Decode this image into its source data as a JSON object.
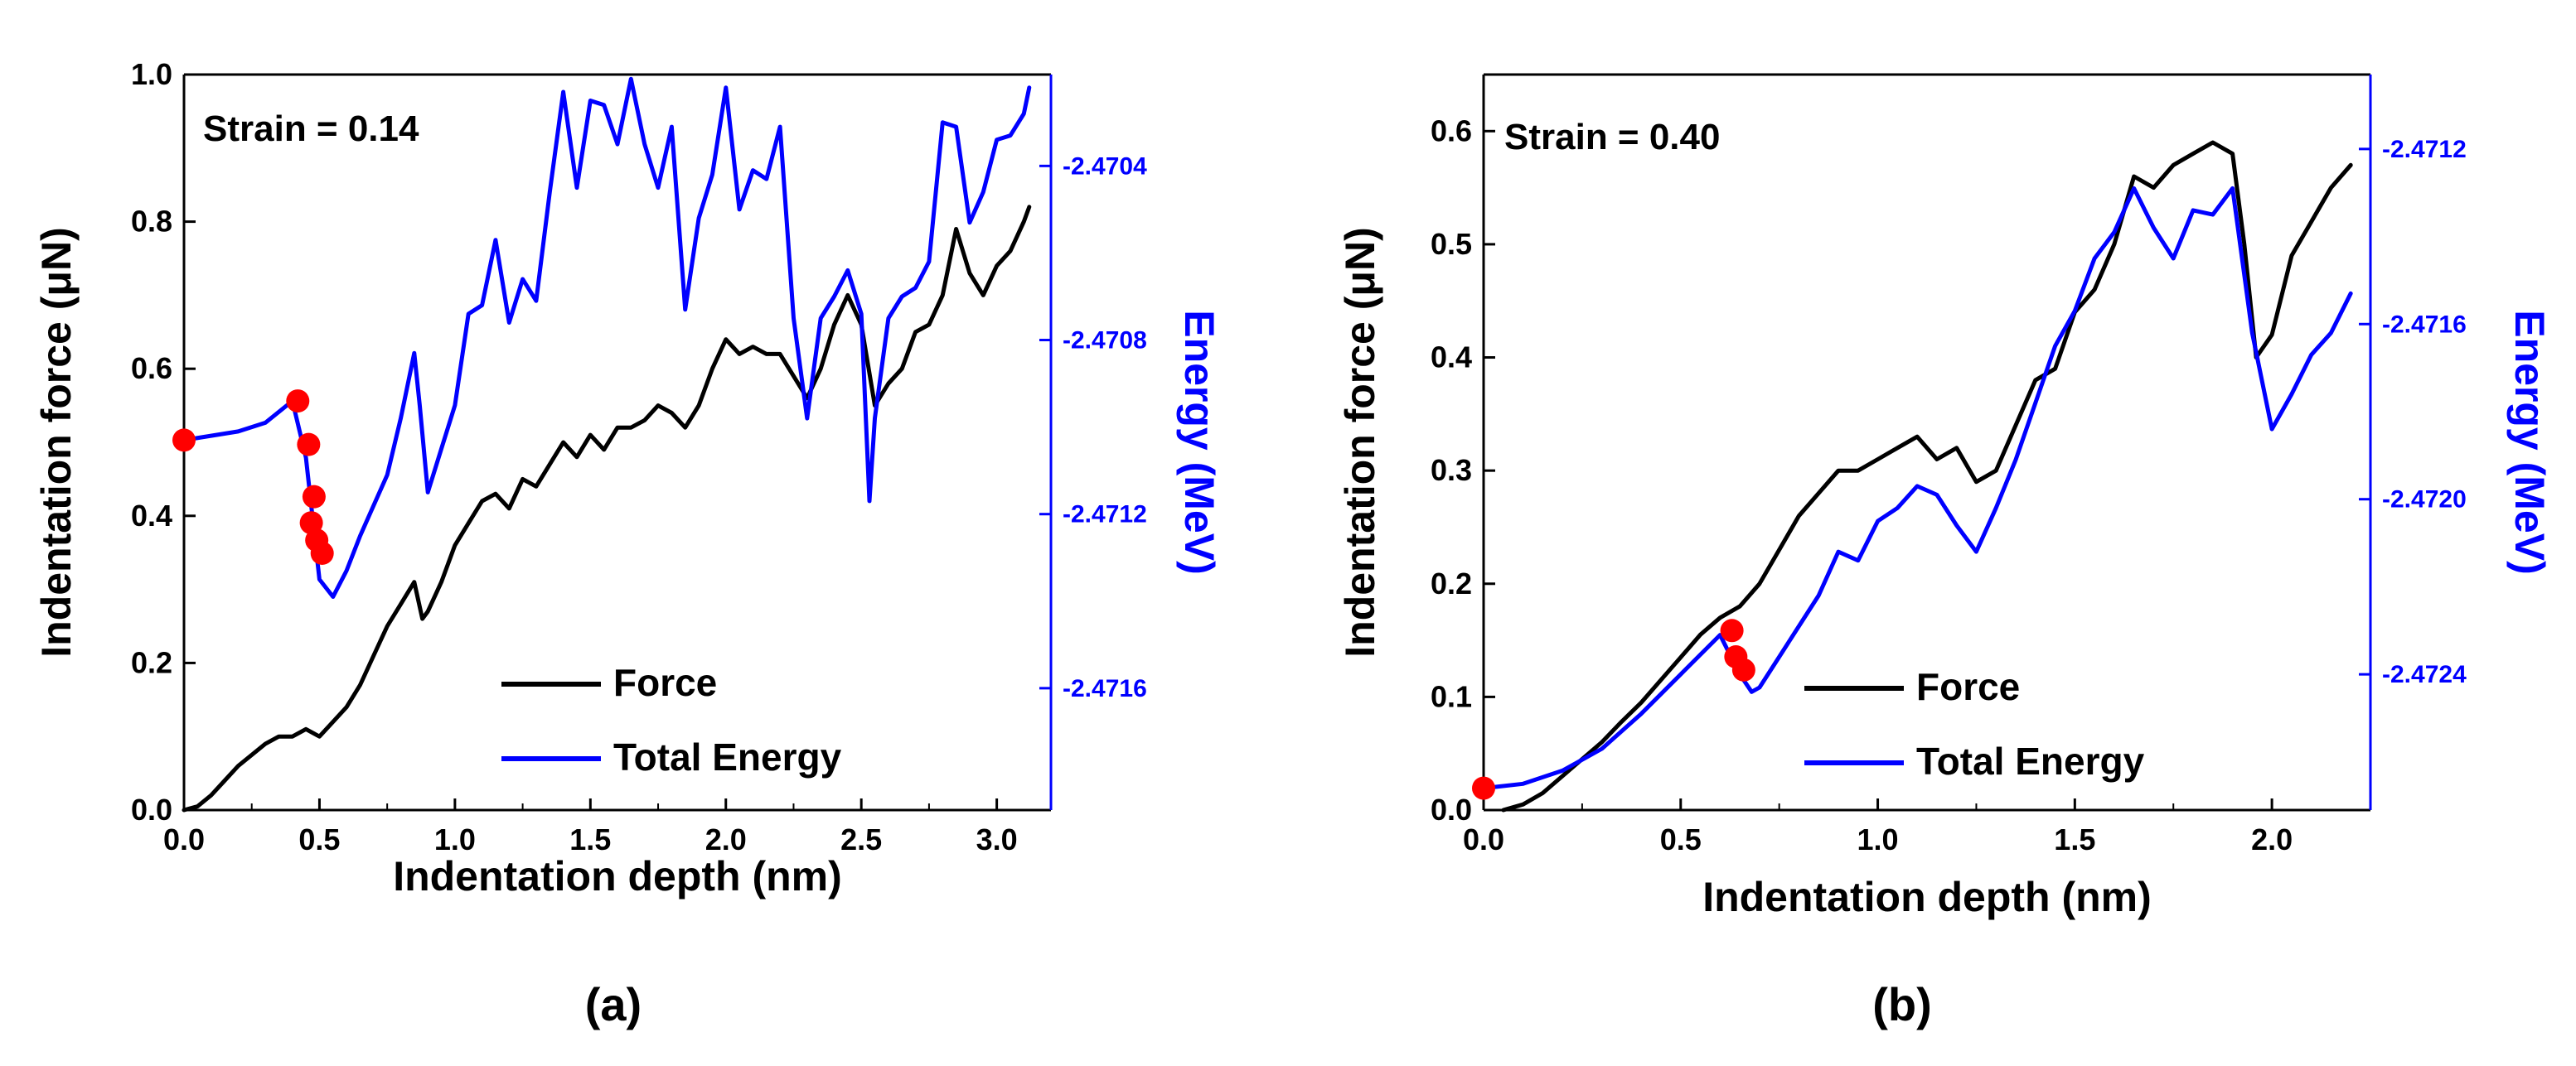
{
  "chart_data": [
    {
      "type": "line",
      "panel_label": "(a)",
      "annotation": "Strain = 0.14",
      "xlabel": "Indentation depth (nm)",
      "ylabel": "Indentation force (μN)",
      "y2label": "Energy (MeV)",
      "xlim": [
        0,
        3.2
      ],
      "ylim": [
        0,
        1.0
      ],
      "y2lim": [
        -2.47188,
        -2.47019
      ],
      "xticks": [
        0,
        0.5,
        1.0,
        1.5,
        2.0,
        2.5,
        3.0
      ],
      "xtick_labels": [
        "0.0",
        "0.5",
        "1.0",
        "1.5",
        "2.0",
        "2.5",
        "3.0"
      ],
      "yticks": [
        0,
        0.2,
        0.4,
        0.6,
        0.8,
        1.0
      ],
      "ytick_labels": [
        "0.0",
        "0.2",
        "0.4",
        "0.6",
        "0.8",
        "1.0"
      ],
      "y2ticks": [
        -2.4716,
        -2.4712,
        -2.4708,
        -2.4704
      ],
      "y2tick_labels": [
        "-2.4716",
        "-2.4712",
        "-2.4708",
        "-2.4704"
      ],
      "grid": false,
      "legend": "bottom-right",
      "series": [
        {
          "name": "Force",
          "axis": "left",
          "color": "#000000",
          "x": [
            0.0,
            0.05,
            0.1,
            0.15,
            0.2,
            0.25,
            0.3,
            0.35,
            0.4,
            0.45,
            0.5,
            0.55,
            0.6,
            0.65,
            0.7,
            0.75,
            0.8,
            0.85,
            0.88,
            0.9,
            0.95,
            1.0,
            1.05,
            1.1,
            1.15,
            1.2,
            1.25,
            1.3,
            1.35,
            1.4,
            1.45,
            1.5,
            1.55,
            1.6,
            1.65,
            1.7,
            1.75,
            1.8,
            1.85,
            1.9,
            1.95,
            2.0,
            2.05,
            2.1,
            2.15,
            2.2,
            2.25,
            2.3,
            2.35,
            2.4,
            2.45,
            2.5,
            2.55,
            2.6,
            2.65,
            2.7,
            2.75,
            2.8,
            2.85,
            2.9,
            2.95,
            3.0,
            3.05,
            3.1,
            3.12
          ],
          "y": [
            0.0,
            0.005,
            0.02,
            0.04,
            0.06,
            0.075,
            0.09,
            0.1,
            0.1,
            0.11,
            0.1,
            0.12,
            0.14,
            0.17,
            0.21,
            0.25,
            0.28,
            0.31,
            0.26,
            0.27,
            0.31,
            0.36,
            0.39,
            0.42,
            0.43,
            0.41,
            0.45,
            0.44,
            0.47,
            0.5,
            0.48,
            0.51,
            0.49,
            0.52,
            0.52,
            0.53,
            0.55,
            0.54,
            0.52,
            0.55,
            0.6,
            0.64,
            0.62,
            0.63,
            0.62,
            0.62,
            0.59,
            0.56,
            0.6,
            0.66,
            0.7,
            0.66,
            0.55,
            0.58,
            0.6,
            0.65,
            0.66,
            0.7,
            0.79,
            0.73,
            0.7,
            0.74,
            0.76,
            0.8,
            0.82
          ]
        },
        {
          "name": "Total Energy",
          "axis": "right",
          "color": "#0000ff",
          "x": [
            0.0,
            0.1,
            0.2,
            0.3,
            0.4,
            0.45,
            0.5,
            0.55,
            0.6,
            0.65,
            0.7,
            0.75,
            0.8,
            0.85,
            0.87,
            0.9,
            0.95,
            1.0,
            1.05,
            1.1,
            1.15,
            1.2,
            1.25,
            1.3,
            1.35,
            1.4,
            1.45,
            1.5,
            1.55,
            1.6,
            1.65,
            1.7,
            1.75,
            1.8,
            1.85,
            1.9,
            1.95,
            2.0,
            2.05,
            2.1,
            2.15,
            2.2,
            2.25,
            2.3,
            2.35,
            2.4,
            2.45,
            2.5,
            2.53,
            2.55,
            2.6,
            2.65,
            2.7,
            2.75,
            2.8,
            2.85,
            2.9,
            2.95,
            3.0,
            3.05,
            3.1,
            3.12
          ],
          "y": [
            -2.47103,
            -2.47102,
            -2.47101,
            -2.47099,
            -2.47094,
            -2.47107,
            -2.47135,
            -2.47139,
            -2.47133,
            -2.47125,
            -2.47118,
            -2.47111,
            -2.47098,
            -2.47083,
            -2.47095,
            -2.47115,
            -2.47105,
            -2.47095,
            -2.47074,
            -2.47072,
            -2.47057,
            -2.47076,
            -2.47066,
            -2.47071,
            -2.47046,
            -2.47023,
            -2.47045,
            -2.47025,
            -2.47026,
            -2.47035,
            -2.4702,
            -2.47035,
            -2.47045,
            -2.47031,
            -2.47073,
            -2.47052,
            -2.47042,
            -2.47022,
            -2.4705,
            -2.47041,
            -2.47043,
            -2.47031,
            -2.47075,
            -2.47098,
            -2.47075,
            -2.4707,
            -2.47064,
            -2.47074,
            -2.47117,
            -2.47098,
            -2.47075,
            -2.4707,
            -2.47068,
            -2.47062,
            -2.4703,
            -2.47031,
            -2.47053,
            -2.47046,
            -2.47034,
            -2.47033,
            -2.47028,
            -2.47022
          ]
        }
      ],
      "markers": {
        "color": "#ff0000",
        "axis": "right",
        "x": [
          0.0,
          0.42,
          0.46,
          0.48,
          0.47,
          0.49,
          0.51
        ],
        "y": [
          -2.47103,
          -2.47094,
          -2.47104,
          -2.47116,
          -2.47122,
          -2.47126,
          -2.47129
        ]
      }
    },
    {
      "type": "line",
      "panel_label": "(b)",
      "annotation": "Strain = 0.40",
      "xlabel": "Indentation depth (nm)",
      "ylabel": "Indentation force (μN)",
      "y2label": "Energy (MeV)",
      "xlim": [
        0,
        2.25
      ],
      "ylim": [
        0,
        0.65
      ],
      "y2lim": [
        -2.47271,
        -2.47103
      ],
      "xticks": [
        0,
        0.5,
        1.0,
        1.5,
        2.0
      ],
      "xtick_labels": [
        "0.0",
        "0.5",
        "1.0",
        "1.5",
        "2.0"
      ],
      "yticks": [
        0,
        0.1,
        0.2,
        0.3,
        0.4,
        0.5,
        0.6
      ],
      "ytick_labels": [
        "0.0",
        "0.1",
        "0.2",
        "0.3",
        "0.4",
        "0.5",
        "0.6"
      ],
      "y2ticks": [
        -2.4724,
        -2.472,
        -2.4716,
        -2.4712
      ],
      "y2tick_labels": [
        "-2.4724",
        "-2.4720",
        "-2.4716",
        "-2.4712"
      ],
      "grid": false,
      "legend": "bottom-right",
      "series": [
        {
          "name": "Force",
          "axis": "left",
          "color": "#000000",
          "x": [
            0.05,
            0.1,
            0.15,
            0.2,
            0.25,
            0.3,
            0.35,
            0.4,
            0.45,
            0.5,
            0.55,
            0.6,
            0.65,
            0.7,
            0.75,
            0.8,
            0.85,
            0.9,
            0.95,
            1.0,
            1.05,
            1.1,
            1.15,
            1.2,
            1.25,
            1.3,
            1.35,
            1.4,
            1.45,
            1.5,
            1.55,
            1.6,
            1.65,
            1.7,
            1.75,
            1.8,
            1.85,
            1.9,
            1.93,
            1.96,
            2.0,
            2.05,
            2.1,
            2.15,
            2.2
          ],
          "y": [
            0.0,
            0.005,
            0.015,
            0.03,
            0.045,
            0.06,
            0.078,
            0.095,
            0.115,
            0.135,
            0.155,
            0.17,
            0.18,
            0.2,
            0.23,
            0.26,
            0.28,
            0.3,
            0.3,
            0.31,
            0.32,
            0.33,
            0.31,
            0.32,
            0.29,
            0.3,
            0.34,
            0.38,
            0.39,
            0.44,
            0.46,
            0.5,
            0.56,
            0.55,
            0.57,
            0.58,
            0.59,
            0.58,
            0.5,
            0.4,
            0.42,
            0.49,
            0.52,
            0.55,
            0.57
          ]
        },
        {
          "name": "Total Energy",
          "axis": "right",
          "color": "#0000ff",
          "x": [
            0.0,
            0.1,
            0.2,
            0.3,
            0.4,
            0.5,
            0.6,
            0.65,
            0.68,
            0.7,
            0.75,
            0.8,
            0.85,
            0.9,
            0.95,
            1.0,
            1.05,
            1.1,
            1.15,
            1.2,
            1.25,
            1.3,
            1.35,
            1.4,
            1.45,
            1.5,
            1.55,
            1.6,
            1.65,
            1.7,
            1.75,
            1.8,
            1.85,
            1.9,
            1.95,
            2.0,
            2.05,
            2.1,
            2.15,
            2.2
          ],
          "y": [
            -2.47266,
            -2.47265,
            -2.47262,
            -2.47257,
            -2.47249,
            -2.4724,
            -2.47231,
            -2.4724,
            -2.47244,
            -2.47243,
            -2.47236,
            -2.47229,
            -2.47222,
            -2.47212,
            -2.47214,
            -2.47205,
            -2.47202,
            -2.47197,
            -2.47199,
            -2.47206,
            -2.47212,
            -2.47202,
            -2.47191,
            -2.47178,
            -2.47165,
            -2.47157,
            -2.47145,
            -2.47139,
            -2.47129,
            -2.47138,
            -2.47145,
            -2.47134,
            -2.47135,
            -2.47129,
            -2.47162,
            -2.47184,
            -2.47176,
            -2.47167,
            -2.47162,
            -2.47153
          ]
        }
      ],
      "markers": {
        "color": "#ff0000",
        "axis": "right",
        "x": [
          0.0,
          0.63,
          0.64,
          0.66
        ],
        "y": [
          -2.47266,
          -2.4723,
          -2.47236,
          -2.47239
        ]
      }
    }
  ]
}
